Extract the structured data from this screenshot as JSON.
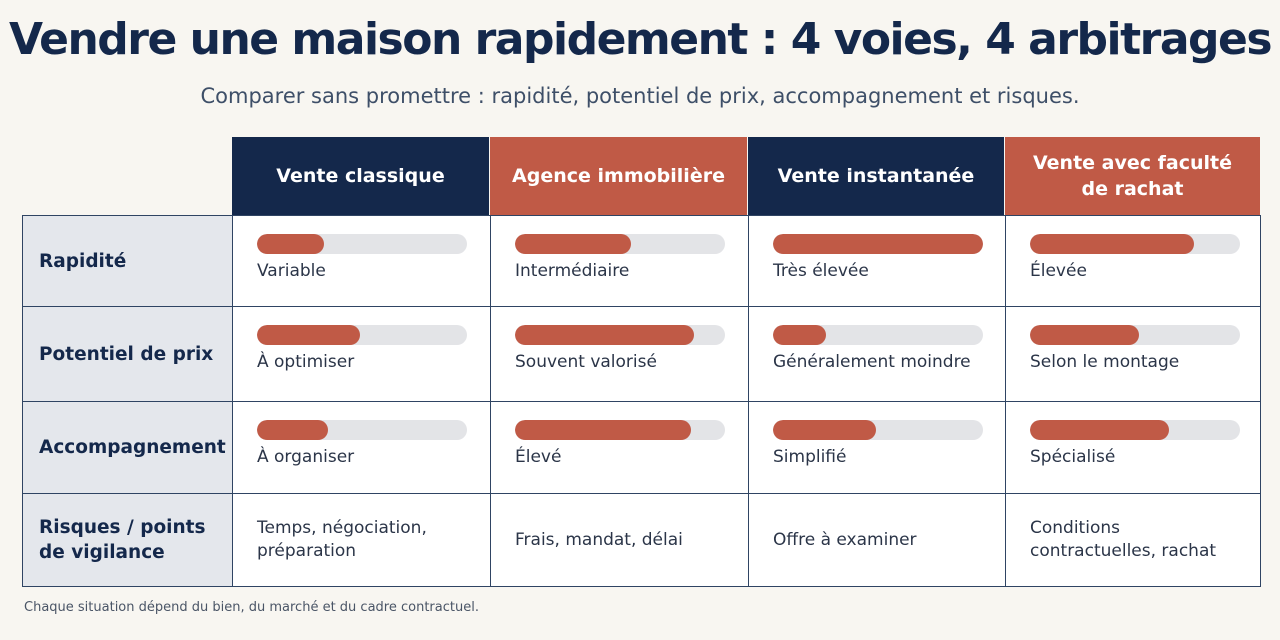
{
  "title": "Vendre une maison rapidement : 4 voies, 4 arbitrages",
  "subtitle": "Comparer sans promettre : rapidité, potentiel de prix, accompagnement et risques.",
  "colors": {
    "navy": "#14284b",
    "accent_red": "#c05a46",
    "bar_track": "#e3e4e7",
    "row_header_bg": "#e4e7ec",
    "page_bg": "#f8f6f1"
  },
  "columns": [
    {
      "label": "Vente classique",
      "color": "navy"
    },
    {
      "label": "Agence immobilière",
      "color": "red"
    },
    {
      "label": "Vente instantanée",
      "color": "navy"
    },
    {
      "label": "Vente avec faculté de rachat",
      "color": "red"
    }
  ],
  "rows": [
    {
      "label": "Rapidité",
      "cells": [
        {
          "level": 0.32,
          "text": "Variable"
        },
        {
          "level": 0.55,
          "text": "Intermédiaire"
        },
        {
          "level": 1.0,
          "text": "Très élevée"
        },
        {
          "level": 0.78,
          "text": "Élevée"
        }
      ]
    },
    {
      "label": "Potentiel de prix",
      "cells": [
        {
          "level": 0.49,
          "text": "À optimiser"
        },
        {
          "level": 0.85,
          "text": "Souvent valorisé"
        },
        {
          "level": 0.25,
          "text": "Généralement moindre"
        },
        {
          "level": 0.52,
          "text": "Selon le montage"
        }
      ]
    },
    {
      "label": "Accompagnement",
      "cells": [
        {
          "level": 0.34,
          "text": "À organiser"
        },
        {
          "level": 0.84,
          "text": "Élevé"
        },
        {
          "level": 0.49,
          "text": "Simplifié"
        },
        {
          "level": 0.66,
          "text": "Spécialisé"
        }
      ]
    },
    {
      "label": "Risques / points de vigilance",
      "cells": [
        {
          "text": "Temps, négociation, préparation"
        },
        {
          "text": "Frais, mandat, délai"
        },
        {
          "text": "Offre à examiner"
        },
        {
          "text": "Conditions contractuelles, rachat"
        }
      ]
    }
  ],
  "footnote": "Chaque situation dépend du bien, du marché et du cadre contractuel."
}
